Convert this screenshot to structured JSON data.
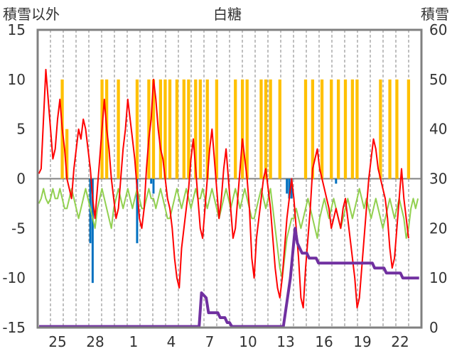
{
  "chart_data": {
    "type": "line",
    "title": "白糖",
    "left_axis_label": "積雪以外",
    "right_axis_label": "積雪",
    "ylim_left": [
      -15,
      15
    ],
    "ylim_right": [
      0,
      60
    ],
    "y_ticks_left": [
      15,
      10,
      5,
      0,
      -5,
      -10,
      -15
    ],
    "y_ticks_right": [
      60,
      50,
      40,
      30,
      20,
      10,
      0
    ],
    "x_tick_labels": [
      "25",
      "28",
      "1",
      "4",
      "7",
      "10",
      "13",
      "16",
      "19",
      "22"
    ],
    "grid": "vertical dashed",
    "colors": {
      "frame": "#808080",
      "zero_line": "#808080",
      "grid": "#808080",
      "temperature": "#ff0000",
      "dew_point": "#92d050",
      "sunshine": "#ffc000",
      "precipitation": "#0070c0",
      "snow_depth": "#7030a0"
    },
    "series": [
      {
        "key": "temperature",
        "axis": "left",
        "values": [
          0.5,
          1,
          6,
          11,
          8,
          5,
          2,
          3,
          6,
          8,
          5,
          3,
          0,
          -1,
          -2,
          1,
          3,
          5,
          4,
          6,
          5,
          3,
          1,
          -2,
          -4,
          -1,
          2,
          5,
          8,
          5,
          3,
          0,
          -2,
          -4,
          -3,
          0,
          3,
          5,
          8,
          6,
          4,
          2,
          -1,
          -4,
          -5,
          -3,
          1,
          4,
          6,
          10,
          8,
          5,
          3,
          2,
          0,
          -2,
          -3,
          -5,
          -8,
          -10,
          -11,
          -7,
          -5,
          -3,
          -1,
          2,
          4,
          1,
          -2,
          -5,
          -6,
          -3,
          0,
          3,
          5,
          2,
          -1,
          -4,
          -2,
          1,
          3,
          0,
          -3,
          -6,
          -5,
          -2,
          1,
          4,
          2,
          0,
          -3,
          -8,
          -10,
          -6,
          -4,
          -2,
          0,
          1,
          -1,
          -3,
          -6,
          -9,
          -11,
          -12,
          -10,
          -7,
          -4,
          -2,
          0,
          -2,
          -5,
          -8,
          -12,
          -13,
          -9,
          -6,
          -3,
          1,
          2,
          3,
          1,
          0,
          -1,
          -2,
          -3,
          -5,
          -4,
          -3,
          -4,
          -5,
          -3,
          -2,
          -4,
          -6,
          -8,
          -10,
          -13,
          -12,
          -9,
          -6,
          -3,
          0,
          2,
          4,
          3,
          1,
          0,
          -1,
          -2,
          -4,
          -7,
          -9,
          -8,
          -5,
          -2,
          1,
          -2,
          -4,
          -6
        ]
      },
      {
        "key": "dew_point",
        "axis": "left",
        "values": [
          -2.5,
          -2,
          -1,
          -2,
          -2.5,
          -2,
          -1,
          -2,
          -2,
          -1,
          -2,
          -3,
          -3,
          -2,
          -1,
          -2,
          -3,
          -4,
          -3,
          -2,
          -1,
          -2,
          -3,
          -4,
          -5,
          -3,
          -2,
          -1,
          -2,
          -3,
          -4,
          -5,
          -3,
          -2,
          -1,
          -2,
          -3,
          -2,
          -1,
          -2,
          -3,
          -2,
          -1,
          -2,
          -3,
          -3,
          -2,
          -1,
          -2,
          -2,
          -3,
          -2,
          -1,
          -2,
          -3,
          -4,
          -4,
          -3,
          -2,
          -1,
          -2,
          -3,
          -2,
          -1,
          -2,
          -3,
          -2,
          -1,
          -2,
          -2,
          -1,
          -2,
          -3,
          -2,
          -1,
          -2,
          -3,
          -4,
          -3,
          -2,
          -1,
          -2,
          -3,
          -2,
          -1,
          -2,
          -3,
          -2,
          -1,
          -2,
          -3,
          -4,
          -4,
          -3,
          -2,
          -1,
          -2,
          -3,
          -2,
          -1,
          -3,
          -5,
          -7,
          -9,
          -10,
          -8,
          -6,
          -5,
          -4,
          -4,
          -3,
          -4,
          -5,
          -4,
          -3,
          -2,
          -3,
          -4,
          -5,
          -6,
          -4,
          -3,
          -2,
          -3,
          -4,
          -3,
          -2,
          -3,
          -4,
          -5,
          -4,
          -3,
          -2,
          -3,
          -4,
          -3,
          -2,
          -1,
          -2,
          -3,
          -2,
          -3,
          -4,
          -3,
          -2,
          -3,
          -4,
          -5,
          -4,
          -3,
          -2,
          -3,
          -4,
          -3,
          -2,
          -3,
          -4,
          -6,
          -5,
          -3,
          -2,
          -3,
          -2
        ]
      },
      {
        "key": "snow_depth",
        "axis": "right",
        "points": [
          [
            0,
            0
          ],
          [
            65,
            0
          ],
          [
            69,
            0
          ],
          [
            70,
            7
          ],
          [
            72,
            6
          ],
          [
            73,
            3
          ],
          [
            77,
            3
          ],
          [
            78,
            2
          ],
          [
            80,
            2
          ],
          [
            81,
            1
          ],
          [
            82,
            1
          ],
          [
            83,
            0
          ],
          [
            103,
            0
          ],
          [
            105,
            0
          ],
          [
            108,
            10
          ],
          [
            110,
            20
          ],
          [
            111,
            17
          ],
          [
            113,
            15
          ],
          [
            115,
            15
          ],
          [
            116,
            14
          ],
          [
            119,
            14
          ],
          [
            120,
            13
          ],
          [
            143,
            13
          ],
          [
            144,
            12
          ],
          [
            148,
            12
          ],
          [
            149,
            11
          ],
          [
            155,
            11
          ],
          [
            156,
            10
          ],
          [
            163,
            10
          ]
        ]
      },
      {
        "key": "sunshine",
        "axis": "right",
        "type": "bar",
        "bars": [
          [
            10,
            50
          ],
          [
            12,
            40
          ],
          [
            27,
            50
          ],
          [
            29,
            50
          ],
          [
            34,
            50
          ],
          [
            42,
            50
          ],
          [
            47,
            50
          ],
          [
            49,
            50
          ],
          [
            52,
            50
          ],
          [
            54,
            50
          ],
          [
            56,
            50
          ],
          [
            59,
            50
          ],
          [
            62,
            50
          ],
          [
            64,
            50
          ],
          [
            67,
            50
          ],
          [
            69,
            50
          ],
          [
            72,
            50
          ],
          [
            76,
            50
          ],
          [
            84,
            50
          ],
          [
            87,
            50
          ],
          [
            89,
            50
          ],
          [
            95,
            50
          ],
          [
            97,
            50
          ],
          [
            99,
            50
          ],
          [
            103,
            50
          ],
          [
            114,
            50
          ],
          [
            117,
            50
          ],
          [
            121,
            50
          ],
          [
            125,
            50
          ],
          [
            128,
            50
          ],
          [
            131,
            50
          ],
          [
            134,
            50
          ],
          [
            136,
            50
          ],
          [
            146,
            50
          ],
          [
            150,
            50
          ],
          [
            153,
            50
          ],
          [
            158,
            50
          ]
        ]
      },
      {
        "key": "precipitation",
        "axis": "left",
        "type": "bar",
        "bars": [
          [
            22,
            -6.5
          ],
          [
            23,
            -10.5
          ],
          [
            42,
            -6.5
          ],
          [
            48,
            -0.5
          ],
          [
            49,
            -1.5
          ],
          [
            106,
            -1.5
          ],
          [
            107,
            -2
          ],
          [
            108,
            -2
          ],
          [
            127,
            -0.5
          ]
        ]
      }
    ]
  }
}
